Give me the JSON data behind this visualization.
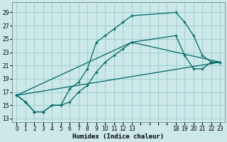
{
  "xlabel": "Humidex (Indice chaleur)",
  "xlim": [
    -0.5,
    23.5
  ],
  "ylim": [
    12.5,
    30.5
  ],
  "xtick_positions": [
    0,
    1,
    2,
    3,
    4,
    5,
    6,
    7,
    8,
    9,
    10,
    11,
    12,
    13,
    18,
    19,
    20,
    21,
    22,
    23
  ],
  "xtick_labels": [
    "0",
    "1",
    "2",
    "3",
    "4",
    "5",
    "6",
    "7",
    "8",
    "9",
    "10",
    "11",
    "12",
    "13",
    "18",
    "19",
    "20",
    "21",
    "22",
    "23"
  ],
  "yticks": [
    13,
    15,
    17,
    19,
    21,
    23,
    25,
    27,
    29
  ],
  "bg_color": "#cce8e8",
  "grid_color": "#99cccc",
  "line_color": "#006666",
  "line1_x": [
    0,
    1,
    2,
    3,
    4,
    5,
    6,
    7,
    8,
    9,
    10,
    11,
    12,
    13,
    18,
    19,
    20,
    21,
    22,
    23
  ],
  "line1_y": [
    16.5,
    15.5,
    14.0,
    14.0,
    15.0,
    15.0,
    17.5,
    18.5,
    20.5,
    24.5,
    25.5,
    26.5,
    27.5,
    28.5,
    29.0,
    27.5,
    25.5,
    22.5,
    21.5,
    21.5
  ],
  "line2_x": [
    0,
    1,
    2,
    3,
    4,
    5,
    6,
    7,
    8,
    9,
    10,
    11,
    12,
    13,
    18,
    19,
    20,
    21,
    22,
    23
  ],
  "line2_y": [
    16.5,
    15.5,
    14.0,
    14.0,
    15.0,
    15.0,
    15.5,
    17.0,
    18.0,
    20.0,
    21.5,
    22.5,
    23.5,
    24.5,
    25.5,
    22.5,
    20.5,
    20.5,
    21.5,
    21.5
  ],
  "line3_x": [
    0,
    23
  ],
  "line3_y": [
    16.5,
    21.5
  ],
  "line4_x": [
    0,
    13,
    23
  ],
  "line4_y": [
    16.5,
    24.5,
    21.5
  ]
}
